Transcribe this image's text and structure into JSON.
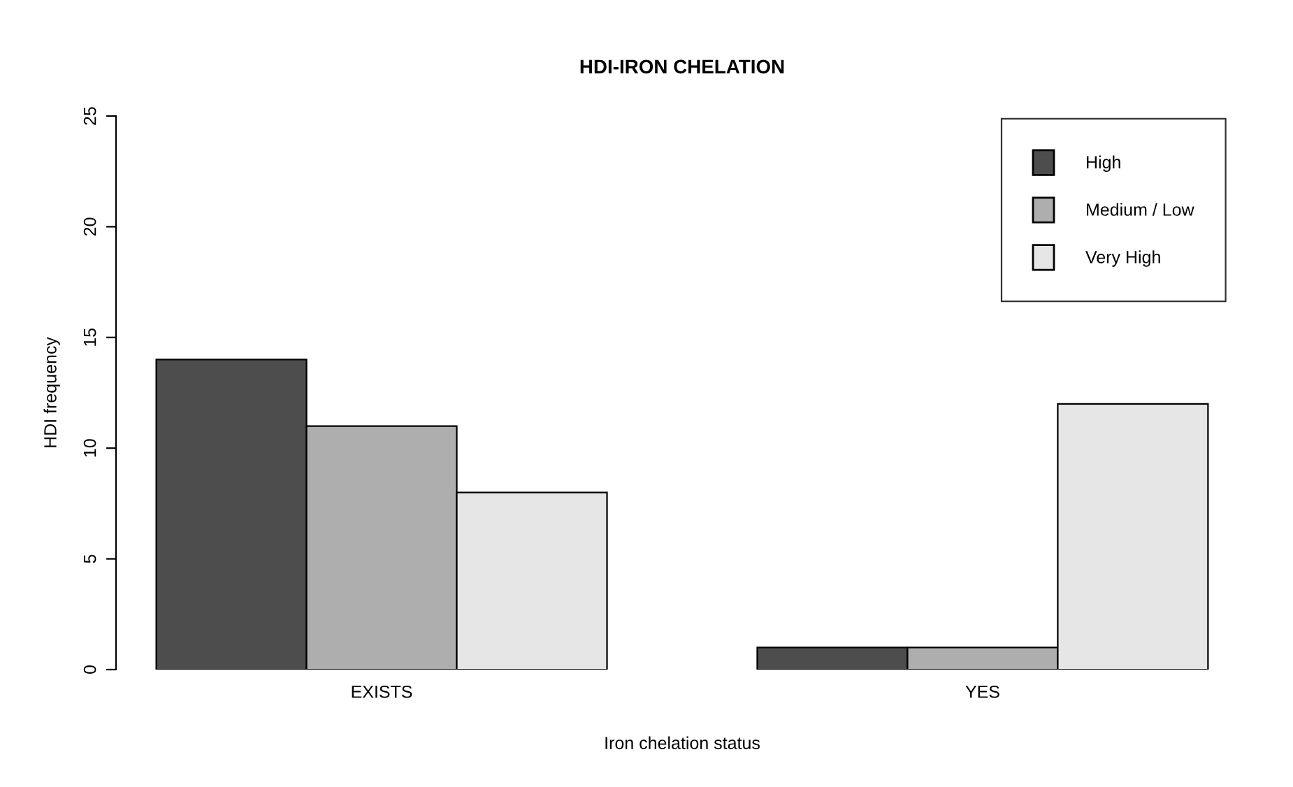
{
  "chart_data": {
    "type": "bar",
    "title": "HDI-IRON CHELATION",
    "xlabel": "Iron chelation status",
    "ylabel": "HDI frequency",
    "categories": [
      "EXISTS",
      "YES"
    ],
    "series": [
      {
        "name": "High",
        "color": "#4d4d4d",
        "values": [
          14,
          1
        ]
      },
      {
        "name": "Medium / Low",
        "color": "#aeaeae",
        "values": [
          11,
          1
        ]
      },
      {
        "name": "Very High",
        "color": "#e6e6e6",
        "values": [
          8,
          12
        ]
      }
    ],
    "ylim": [
      0,
      25
    ],
    "yticks": [
      0,
      5,
      10,
      15,
      20,
      25
    ],
    "grid": false,
    "legend": "top right"
  }
}
